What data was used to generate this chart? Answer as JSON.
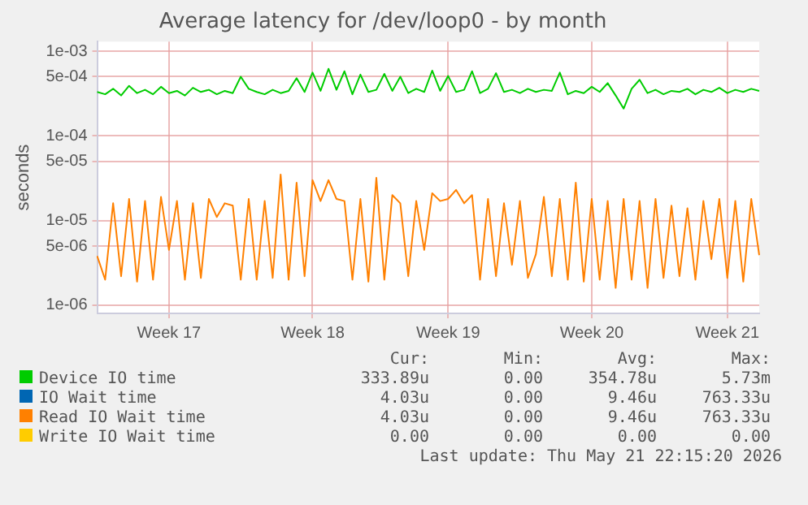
{
  "chart_data": {
    "type": "line",
    "title": "Average latency for /dev/loop0 - by month",
    "ylabel": "seconds",
    "categories": [
      null,
      null,
      null,
      null,
      null,
      null,
      null,
      null,
      null,
      "Week 17",
      null,
      null,
      null,
      null,
      null,
      null,
      null,
      null,
      null,
      null,
      null,
      null,
      null,
      null,
      null,
      null,
      null,
      "Week 18",
      null,
      null,
      null,
      null,
      null,
      null,
      null,
      null,
      null,
      null,
      null,
      null,
      null,
      null,
      null,
      null,
      "Week 19",
      null,
      null,
      null,
      null,
      null,
      null,
      null,
      null,
      null,
      null,
      null,
      null,
      null,
      null,
      null,
      null,
      null,
      "Week 20",
      null,
      null,
      null,
      null,
      null,
      null,
      null,
      null,
      null,
      null,
      null,
      null,
      null,
      null,
      null,
      null,
      "Week 21",
      null,
      null,
      null,
      null
    ],
    "log": "y",
    "ylim": [
      8e-07,
      0.0013
    ],
    "yticks": [
      {
        "value": 1e-06,
        "label": "1e-06"
      },
      {
        "value": 5e-06,
        "label": "5e-06"
      },
      {
        "value": 1e-05,
        "label": "1e-05"
      },
      {
        "value": 5e-05,
        "label": "5e-05"
      },
      {
        "value": 0.0001,
        "label": "1e-04"
      },
      {
        "value": 0.0005,
        "label": "5e-04"
      },
      {
        "value": 0.001,
        "label": "1e-03"
      }
    ],
    "grid": true,
    "legend": "bottom",
    "marker": "none",
    "line_style": "solid",
    "series": [
      {
        "name": "Device IO time",
        "color": "#00cc00",
        "values": [
          0.00033,
          0.00031,
          0.00036,
          0.0003,
          0.00039,
          0.00032,
          0.00035,
          0.00031,
          0.00038,
          0.00032,
          0.00034,
          0.0003,
          0.00037,
          0.00033,
          0.00035,
          0.00031,
          0.00034,
          0.00032,
          0.0005,
          0.00036,
          0.00033,
          0.00031,
          0.00035,
          0.00032,
          0.00034,
          0.00048,
          0.00033,
          0.00056,
          0.00034,
          0.00062,
          0.00035,
          0.00058,
          0.00031,
          0.00053,
          0.00033,
          0.00035,
          0.00054,
          0.00034,
          0.0005,
          0.00032,
          0.00036,
          0.00033,
          0.00059,
          0.00034,
          0.00051,
          0.00033,
          0.00035,
          0.00058,
          0.00032,
          0.00036,
          0.00055,
          0.00033,
          0.00035,
          0.00032,
          0.00036,
          0.00033,
          0.00035,
          0.00034,
          0.00056,
          0.00031,
          0.00034,
          0.00032,
          0.00038,
          0.00033,
          0.00042,
          0.0003,
          0.00021,
          0.00036,
          0.00046,
          0.00032,
          0.00035,
          0.00031,
          0.00034,
          0.00033,
          0.00036,
          0.00031,
          0.00035,
          0.00033,
          0.00037,
          0.00032,
          0.00035,
          0.00033,
          0.00036,
          0.00034
        ]
      },
      {
        "name": "IO Wait time",
        "color": "#0066b3",
        "values": [
          null,
          null,
          null,
          null,
          null,
          null,
          null,
          null,
          null,
          null,
          null,
          null,
          null,
          null,
          null,
          null,
          null,
          null,
          null,
          null,
          null,
          null,
          null,
          null,
          null,
          null,
          null,
          null,
          null,
          null,
          null,
          null,
          null,
          null,
          null,
          null,
          null,
          null,
          null,
          null,
          null,
          null,
          null,
          null,
          null,
          null,
          null,
          null,
          null,
          null,
          null,
          null,
          null,
          null,
          null,
          null,
          null,
          null,
          null,
          null,
          null,
          null,
          null,
          null,
          null,
          null,
          null,
          null,
          null,
          null,
          null,
          null,
          null,
          null,
          null,
          null,
          null,
          null,
          null,
          null,
          null,
          null,
          null,
          null
        ]
      },
      {
        "name": "Read IO Wait time",
        "color": "#ff8000",
        "values": [
          3.8e-06,
          2e-06,
          1.6e-05,
          2.2e-06,
          1.8e-05,
          1.9e-06,
          1.7e-05,
          2e-06,
          1.9e-05,
          4.5e-06,
          1.7e-05,
          2e-06,
          1.6e-05,
          2.1e-06,
          1.8e-05,
          1.1e-05,
          1.6e-05,
          1.5e-05,
          2e-06,
          1.8e-05,
          2e-06,
          1.7e-05,
          2.1e-06,
          3.5e-05,
          2e-06,
          2.8e-05,
          2.2e-06,
          3e-05,
          1.7e-05,
          3e-05,
          1.8e-05,
          1.7e-05,
          2e-06,
          1.8e-05,
          1.9e-06,
          3.2e-05,
          2e-06,
          2e-05,
          1.6e-05,
          2.2e-06,
          1.7e-05,
          4.5e-06,
          2.1e-05,
          1.7e-05,
          1.8e-05,
          2.3e-05,
          1.6e-05,
          2e-05,
          2e-06,
          1.8e-05,
          2.2e-06,
          1.6e-05,
          3e-06,
          1.7e-05,
          2.1e-06,
          4e-06,
          1.9e-05,
          2.2e-06,
          1.8e-05,
          2e-06,
          2.8e-05,
          1.9e-06,
          1.8e-05,
          2e-06,
          1.7e-05,
          1.6e-06,
          1.8e-05,
          2e-06,
          1.7e-05,
          1.6e-06,
          1.8e-05,
          2.1e-06,
          1.5e-05,
          2.2e-06,
          1.4e-05,
          2e-06,
          1.7e-05,
          3.5e-06,
          1.8e-05,
          2.1e-06,
          1.7e-05,
          1.9e-06,
          1.8e-05,
          3.9e-06
        ]
      },
      {
        "name": "Write IO Wait time",
        "color": "#ffcc00",
        "values": [
          null,
          null,
          null,
          null,
          null,
          null,
          null,
          null,
          null,
          null,
          null,
          null,
          null,
          null,
          null,
          null,
          null,
          null,
          null,
          null,
          null,
          null,
          null,
          null,
          null,
          null,
          null,
          null,
          null,
          null,
          null,
          null,
          null,
          null,
          null,
          null,
          null,
          null,
          null,
          null,
          null,
          null,
          null,
          null,
          null,
          null,
          null,
          null,
          null,
          null,
          null,
          null,
          null,
          null,
          null,
          null,
          null,
          null,
          null,
          null,
          null,
          null,
          null,
          null,
          null,
          null,
          null,
          null,
          null,
          null,
          null,
          null,
          null,
          null,
          null,
          null,
          null,
          null,
          null,
          null,
          null,
          null,
          null,
          null
        ]
      }
    ],
    "annotations": [
      "Cur:",
      "Min:",
      "Avg:",
      "Max:",
      "333.89u",
      "0.00",
      "354.78u",
      "5.73m",
      "4.03u",
      "0.00",
      "9.46u",
      "763.33u",
      "4.03u",
      "0.00",
      "9.46u",
      "763.33u",
      "0.00",
      "0.00",
      "0.00",
      "0.00",
      "Last update: Thu May 21 22:15:20 2026"
    ]
  }
}
